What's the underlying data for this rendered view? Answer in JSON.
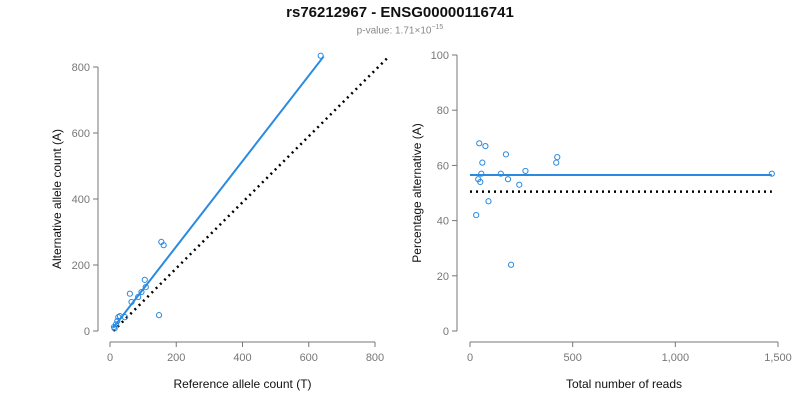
{
  "title": "rs76212967 - ENSG00000116741",
  "subtitle": {
    "prefix": "p-value: 1.71×10",
    "exponent": "−15"
  },
  "colors": {
    "accent": "#2a8ae0",
    "reference": "#000000",
    "axis": "#777777"
  },
  "chart_data": [
    {
      "type": "scatter",
      "xlabel": "Reference allele count (T)",
      "ylabel": "Alternative allele count (A)",
      "xlim": [
        0,
        800
      ],
      "ylim": [
        0,
        800
      ],
      "xticks": [
        0,
        200,
        400,
        600,
        800
      ],
      "yticks": [
        0,
        200,
        400,
        600,
        800
      ],
      "xtick_labels": [
        "0",
        "200",
        "400",
        "600",
        "800"
      ],
      "ytick_labels": [
        "0",
        "200",
        "400",
        "600",
        "800"
      ],
      "x": [
        636,
        18,
        22,
        25,
        30,
        45,
        60,
        65,
        85,
        95,
        105,
        108,
        148,
        155,
        162,
        14,
        12
      ],
      "y": [
        834,
        20,
        30,
        42,
        45,
        42,
        113,
        88,
        103,
        118,
        155,
        133,
        48,
        270,
        260,
        8,
        12
      ],
      "fit_line": {
        "x": [
          10,
          645
        ],
        "y": [
          10,
          832
        ]
      },
      "reference_line": {
        "x": [
          10,
          840
        ],
        "y": [
          0,
          830
        ]
      }
    },
    {
      "type": "scatter",
      "xlabel": "Total number of reads",
      "ylabel": "Percentage alternative (A)",
      "xlim": [
        0,
        1500
      ],
      "ylim": [
        0,
        100
      ],
      "xticks": [
        0,
        500,
        1000,
        1500
      ],
      "yticks": [
        0,
        20,
        40,
        60,
        80,
        100
      ],
      "xtick_labels": [
        "0",
        "500",
        "1,000",
        "1,500"
      ],
      "ytick_labels": [
        "0",
        "20",
        "40",
        "60",
        "80",
        "100"
      ],
      "x": [
        1470,
        30,
        45,
        55,
        60,
        75,
        90,
        150,
        175,
        185,
        200,
        240,
        270,
        420,
        425,
        40,
        50
      ],
      "y": [
        57,
        42,
        68,
        57,
        61,
        67,
        47,
        57,
        64,
        55,
        24,
        53,
        58,
        61,
        63,
        55,
        54
      ],
      "fit_line": {
        "x": [
          0,
          1470
        ],
        "y": [
          56.5,
          56.5
        ]
      },
      "reference_line": {
        "x": [
          0,
          1470
        ],
        "y": [
          50.5,
          50.5
        ]
      }
    }
  ]
}
